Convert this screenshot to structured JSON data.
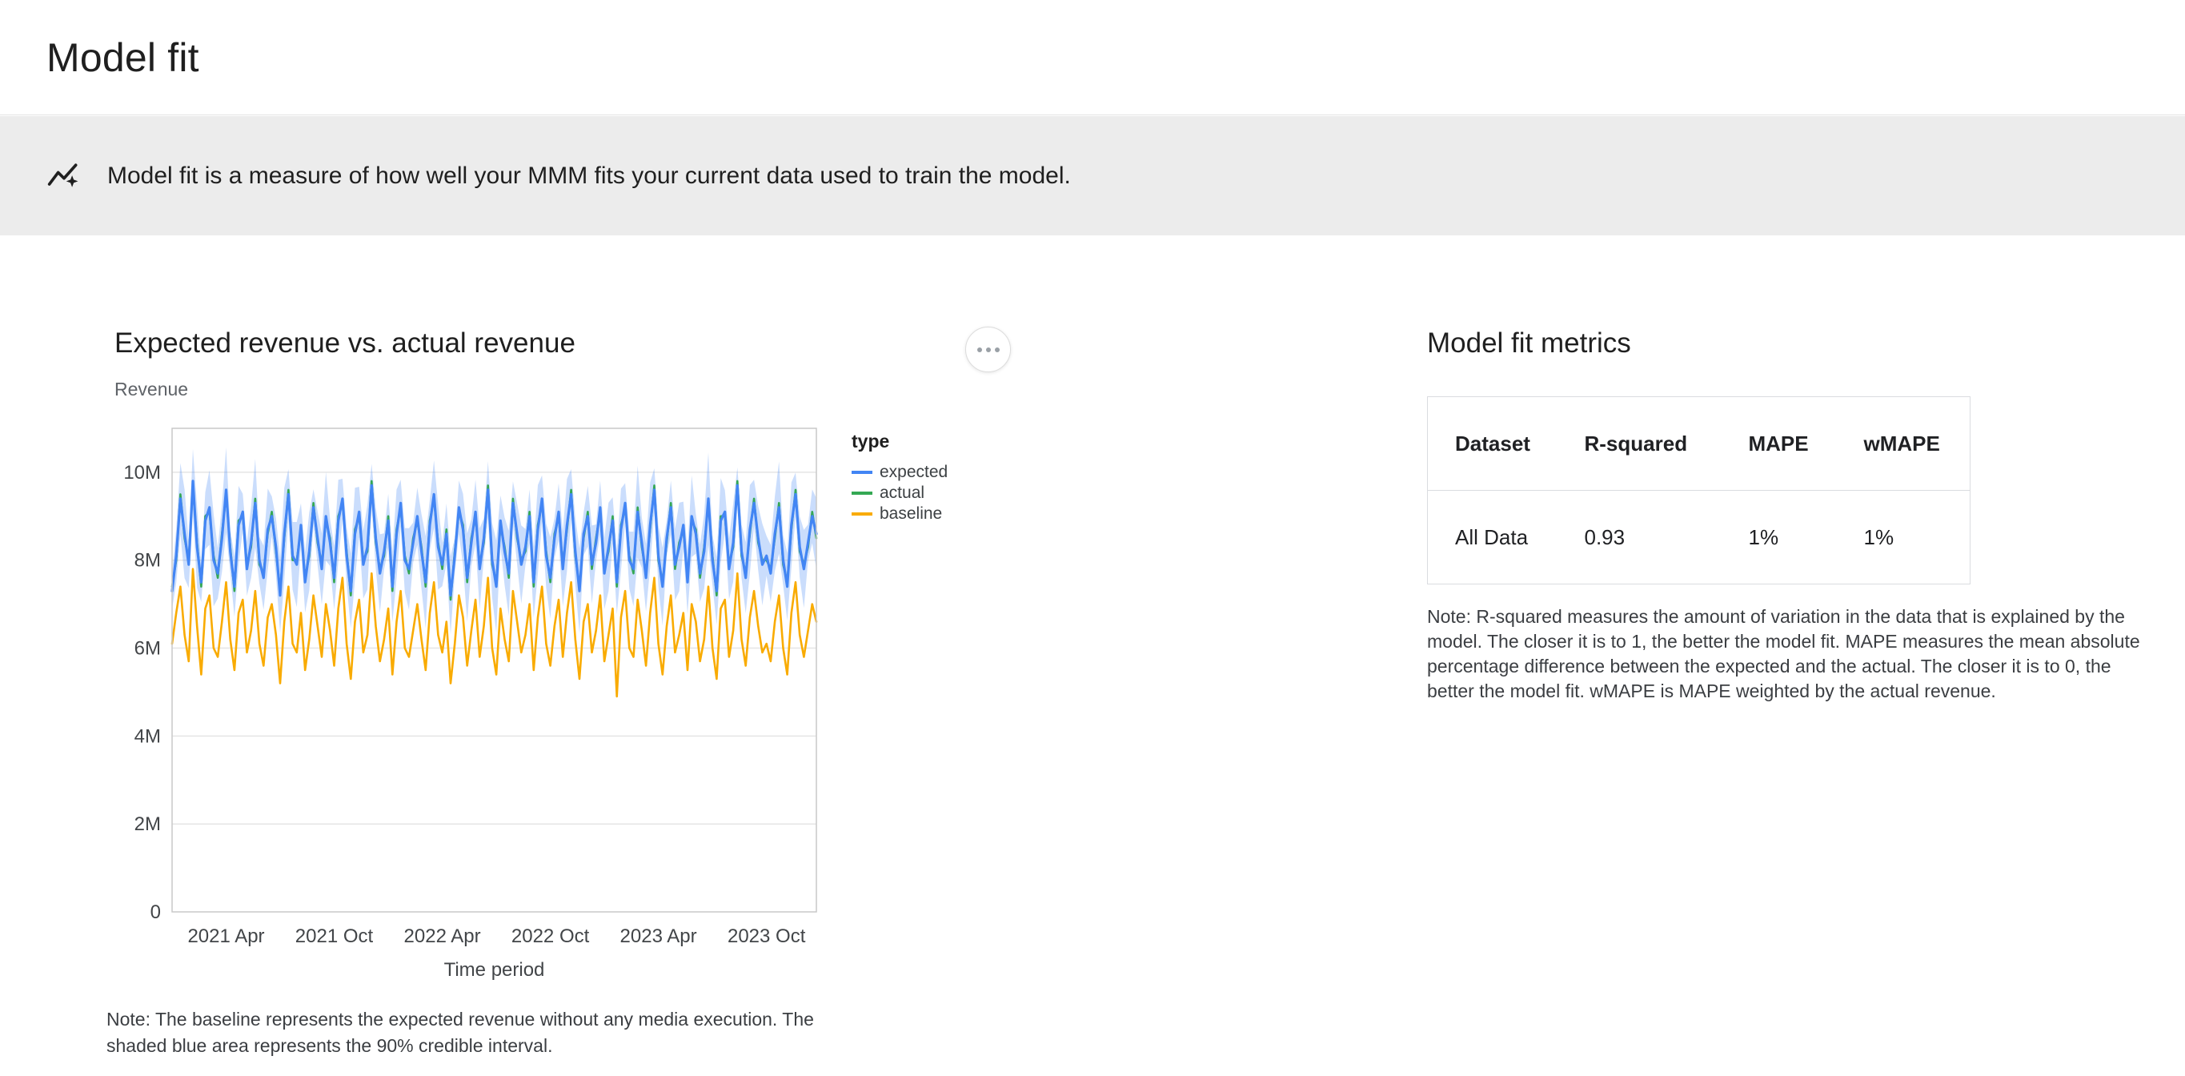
{
  "page": {
    "title": "Model fit"
  },
  "banner": {
    "icon": "insights-icon",
    "text": "Model fit is a measure of how well your MMM fits your current data used to train the model."
  },
  "chart_section": {
    "note": "Note: The baseline represents the expected revenue without any media execution. The shaded blue area represents the 90% credible interval."
  },
  "metrics_section": {
    "title": "Model fit metrics",
    "table": {
      "headers": [
        "Dataset",
        "R-squared",
        "MAPE",
        "wMAPE"
      ],
      "rows": [
        [
          "All Data",
          "0.93",
          "1%",
          "1%"
        ]
      ]
    },
    "note": "Note: R-squared measures the amount of variation in the data that is explained by the model. The closer it is to 1, the better the model fit. MAPE measures the mean absolute percentage difference between the expected and the actual. The closer it is to 0, the better the model fit. wMAPE is MAPE weighted by the actual revenue."
  },
  "chart_data": {
    "type": "line",
    "title": "Expected revenue vs. actual revenue",
    "xlabel": "Time period",
    "ylabel": "Revenue",
    "unit": "millions",
    "frequency": "weekly",
    "x_start": "2021 Jan",
    "x_end": "2023 Dec",
    "ylim": [
      0,
      11
    ],
    "grid": "horizontal",
    "legend_title": "type",
    "legend_position": "right",
    "ci_level": "90% credible interval",
    "ci_halfwidth_mean": 0.75,
    "ci_band_color": "rgba(66,133,244,0.28)",
    "y_ticks": [
      {
        "value": 0,
        "label": "0"
      },
      {
        "value": 2,
        "label": "2M"
      },
      {
        "value": 4,
        "label": "4M"
      },
      {
        "value": 6,
        "label": "6M"
      },
      {
        "value": 8,
        "label": "8M"
      },
      {
        "value": 10,
        "label": "10M"
      }
    ],
    "x_ticks": [
      {
        "index": 13,
        "label": "2021 Apr"
      },
      {
        "index": 39,
        "label": "2021 Oct"
      },
      {
        "index": 65,
        "label": "2022 Apr"
      },
      {
        "index": 91,
        "label": "2022 Oct"
      },
      {
        "index": 117,
        "label": "2023 Apr"
      },
      {
        "index": 143,
        "label": "2023 Oct"
      }
    ],
    "series": [
      {
        "name": "expected",
        "color": "#4285f4",
        "values": [
          7.3,
          8.1,
          9.4,
          8.6,
          7.9,
          9.8,
          8.3,
          7.5,
          8.9,
          9.2,
          8.0,
          7.7,
          8.5,
          9.6,
          8.2,
          7.4,
          8.8,
          9.1,
          7.8,
          8.4,
          9.3,
          8.0,
          7.6,
          8.7,
          9.0,
          8.3,
          7.2,
          8.6,
          9.5,
          8.1,
          7.9,
          8.8,
          7.5,
          8.2,
          9.2,
          8.5,
          7.8,
          9.0,
          8.4,
          7.6,
          8.9,
          9.4,
          8.1,
          7.3,
          8.6,
          9.1,
          7.9,
          8.3,
          9.7,
          8.5,
          7.7,
          8.2,
          8.9,
          7.4,
          8.6,
          9.3,
          8.0,
          7.8,
          8.4,
          9.0,
          8.2,
          7.5,
          8.8,
          9.5,
          8.3,
          7.9,
          8.6,
          7.2,
          8.1,
          9.2,
          8.7,
          7.6,
          8.4,
          9.1,
          7.8,
          8.5,
          9.6,
          8.0,
          7.4,
          8.9,
          8.2,
          7.7,
          9.3,
          8.6,
          7.9,
          8.3,
          9.0,
          7.5,
          8.7,
          9.4,
          8.1,
          7.6,
          8.5,
          9.1,
          7.8,
          8.8,
          9.5,
          8.2,
          7.3,
          8.6,
          9.0,
          7.9,
          8.4,
          9.2,
          7.7,
          8.3,
          8.9,
          7.5,
          8.7,
          9.3,
          8.0,
          7.8,
          9.1,
          8.4,
          7.6,
          8.8,
          9.6,
          8.1,
          7.4,
          8.5,
          9.2,
          7.9,
          8.3,
          8.8,
          7.5,
          9.0,
          8.6,
          7.7,
          8.2,
          9.4,
          8.0,
          7.3,
          8.9,
          9.1,
          7.8,
          8.4,
          9.7,
          8.2,
          7.6,
          8.7,
          9.3,
          8.5,
          7.9,
          8.1,
          7.7,
          8.6,
          9.2,
          8.0,
          7.4,
          8.8,
          9.5,
          8.3,
          7.8,
          8.4,
          9.0,
          8.6
        ]
      },
      {
        "name": "actual",
        "color": "#34a853",
        "values": [
          7.4,
          8.0,
          9.5,
          8.5,
          8.0,
          9.7,
          8.4,
          7.4,
          9.0,
          9.1,
          8.1,
          7.6,
          8.6,
          9.5,
          8.3,
          7.3,
          8.9,
          9.0,
          7.9,
          8.3,
          9.4,
          7.9,
          7.7,
          8.6,
          9.1,
          8.2,
          7.3,
          8.5,
          9.6,
          8.0,
          8.0,
          8.7,
          7.6,
          8.1,
          9.3,
          8.4,
          7.9,
          8.9,
          8.5,
          7.5,
          9.0,
          9.3,
          8.2,
          7.2,
          8.7,
          9.0,
          8.0,
          8.2,
          9.8,
          8.4,
          7.8,
          8.1,
          9.0,
          7.3,
          8.7,
          9.2,
          8.1,
          7.7,
          8.5,
          8.9,
          8.3,
          7.4,
          8.9,
          9.4,
          8.4,
          7.8,
          8.7,
          7.1,
          8.2,
          9.1,
          8.8,
          7.5,
          8.5,
          9.0,
          7.9,
          8.4,
          9.7,
          7.9,
          7.5,
          8.8,
          8.3,
          7.6,
          9.4,
          8.5,
          8.0,
          8.2,
          9.1,
          7.4,
          8.8,
          9.3,
          8.2,
          7.5,
          8.6,
          9.0,
          7.9,
          8.7,
          9.6,
          8.1,
          7.4,
          8.5,
          9.1,
          7.8,
          8.5,
          9.1,
          7.8,
          8.2,
          9.0,
          7.4,
          8.8,
          9.2,
          8.1,
          7.7,
          9.2,
          8.3,
          7.7,
          8.7,
          9.7,
          8.0,
          7.5,
          8.4,
          9.3,
          7.8,
          8.4,
          8.7,
          7.6,
          8.9,
          8.7,
          7.6,
          8.3,
          9.3,
          8.1,
          7.2,
          9.0,
          9.0,
          7.9,
          8.3,
          9.8,
          8.1,
          7.7,
          8.6,
          9.4,
          8.4,
          8.0,
          8.0,
          7.8,
          8.5,
          9.3,
          7.9,
          7.5,
          8.7,
          9.6,
          8.2,
          7.9,
          8.3,
          9.1,
          8.5
        ]
      },
      {
        "name": "baseline",
        "color": "#f9ab00",
        "values": [
          6.1,
          6.8,
          7.4,
          6.3,
          5.7,
          7.8,
          6.5,
          5.4,
          6.9,
          7.2,
          6.0,
          5.8,
          6.6,
          7.5,
          6.2,
          5.5,
          6.8,
          7.1,
          5.9,
          6.4,
          7.3,
          6.1,
          5.6,
          6.7,
          7.0,
          6.3,
          5.2,
          6.6,
          7.4,
          6.1,
          5.9,
          6.8,
          5.5,
          6.2,
          7.2,
          6.5,
          5.8,
          7.0,
          6.4,
          5.6,
          6.9,
          7.6,
          6.1,
          5.3,
          6.6,
          7.1,
          5.9,
          6.3,
          7.7,
          6.5,
          5.7,
          6.2,
          6.9,
          5.4,
          6.6,
          7.3,
          6.0,
          5.8,
          6.4,
          7.0,
          6.2,
          5.5,
          6.8,
          7.5,
          6.3,
          5.9,
          6.6,
          5.2,
          6.1,
          7.2,
          6.7,
          5.6,
          6.4,
          7.1,
          5.8,
          6.5,
          7.6,
          6.0,
          5.4,
          6.9,
          6.2,
          5.7,
          7.3,
          6.6,
          5.9,
          6.3,
          7.0,
          5.5,
          6.7,
          7.4,
          6.1,
          5.6,
          6.5,
          7.1,
          5.8,
          6.8,
          7.5,
          6.2,
          5.3,
          6.6,
          7.0,
          5.9,
          6.4,
          7.2,
          5.7,
          6.3,
          6.9,
          4.9,
          6.7,
          7.3,
          6.0,
          5.8,
          7.1,
          6.4,
          5.6,
          6.8,
          7.6,
          6.1,
          5.4,
          6.5,
          7.2,
          5.9,
          6.3,
          6.8,
          5.5,
          7.0,
          6.6,
          5.7,
          6.2,
          7.4,
          6.0,
          5.3,
          6.9,
          7.1,
          5.8,
          6.4,
          7.7,
          6.2,
          5.6,
          6.7,
          7.3,
          6.5,
          5.9,
          6.1,
          5.7,
          6.6,
          7.2,
          6.0,
          5.4,
          6.8,
          7.5,
          6.3,
          5.8,
          6.4,
          7.0,
          6.6
        ]
      }
    ]
  }
}
